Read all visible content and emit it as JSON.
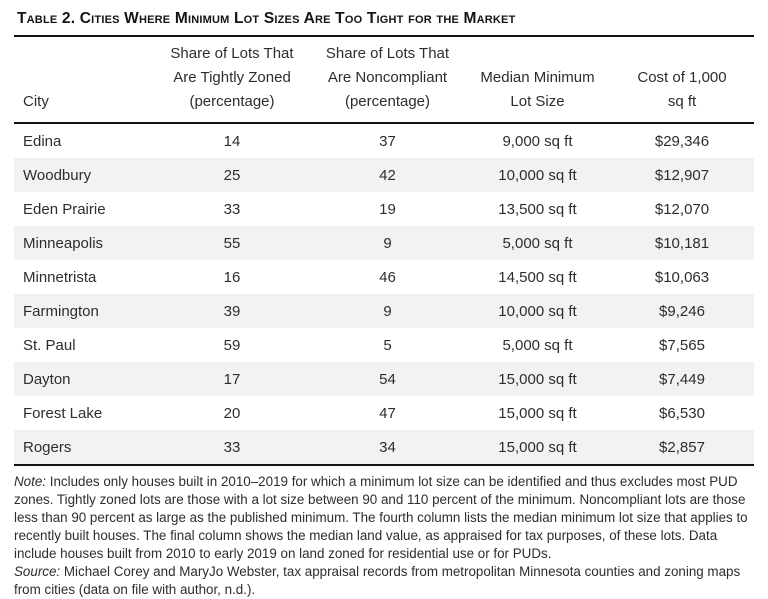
{
  "title": "Table 2. Cities Where Minimum Lot Sizes Are Too Tight for the Market",
  "headers": {
    "city": "City",
    "tight": [
      "Share of Lots That",
      "Are Tightly Zoned",
      "(percentage)"
    ],
    "noncompliant": [
      "Share of Lots That",
      "Are Noncompliant",
      "(percentage)"
    ],
    "median": [
      "Median Minimum",
      "Lot Size"
    ],
    "cost": [
      "Cost of 1,000",
      "sq ft"
    ]
  },
  "rows": [
    [
      "Edina",
      "14",
      "37",
      "9,000 sq ft",
      "$29,346"
    ],
    [
      "Woodbury",
      "25",
      "42",
      "10,000 sq ft",
      "$12,907"
    ],
    [
      "Eden Prairie",
      "33",
      "19",
      "13,500 sq ft",
      "$12,070"
    ],
    [
      "Minneapolis",
      "55",
      "9",
      "5,000 sq ft",
      "$10,181"
    ],
    [
      "Minnetrista",
      "16",
      "46",
      "14,500 sq ft",
      "$10,063"
    ],
    [
      "Farmington",
      "39",
      "9",
      "10,000 sq ft",
      "$9,246"
    ],
    [
      "St. Paul",
      "59",
      "5",
      "5,000 sq ft",
      "$7,565"
    ],
    [
      "Dayton",
      "17",
      "54",
      "15,000 sq ft",
      "$7,449"
    ],
    [
      "Forest Lake",
      "20",
      "47",
      "15,000 sq ft",
      "$6,530"
    ],
    [
      "Rogers",
      "33",
      "34",
      "15,000 sq ft",
      "$2,857"
    ]
  ],
  "notes": {
    "note_label": "Note:",
    "note_text": " Includes only houses built in 2010–2019 for which a minimum lot size can be identified and thus excludes most PUD zones. Tightly zoned lots are those with a lot size between 90 and 110 percent of the minimum. Noncompliant lots are those less than 90 percent as large as the published minimum. The fourth column lists the median minimum lot size that applies to recently built houses. The final column shows the median land value, as appraised for tax purposes, of these lots. Data include houses built from 2010 to early 2019 on land zoned for residential use or for PUDs.",
    "source_label": "Source:",
    "source_text": " Michael Corey and MaryJo Webster, tax appraisal records from metropolitan Minnesota counties and zoning maps from cities (data on file with author, n.d.)."
  },
  "colors": {
    "rule": "#141414",
    "row_shade": "#f2f2f1",
    "text": "#2d2d2d"
  }
}
